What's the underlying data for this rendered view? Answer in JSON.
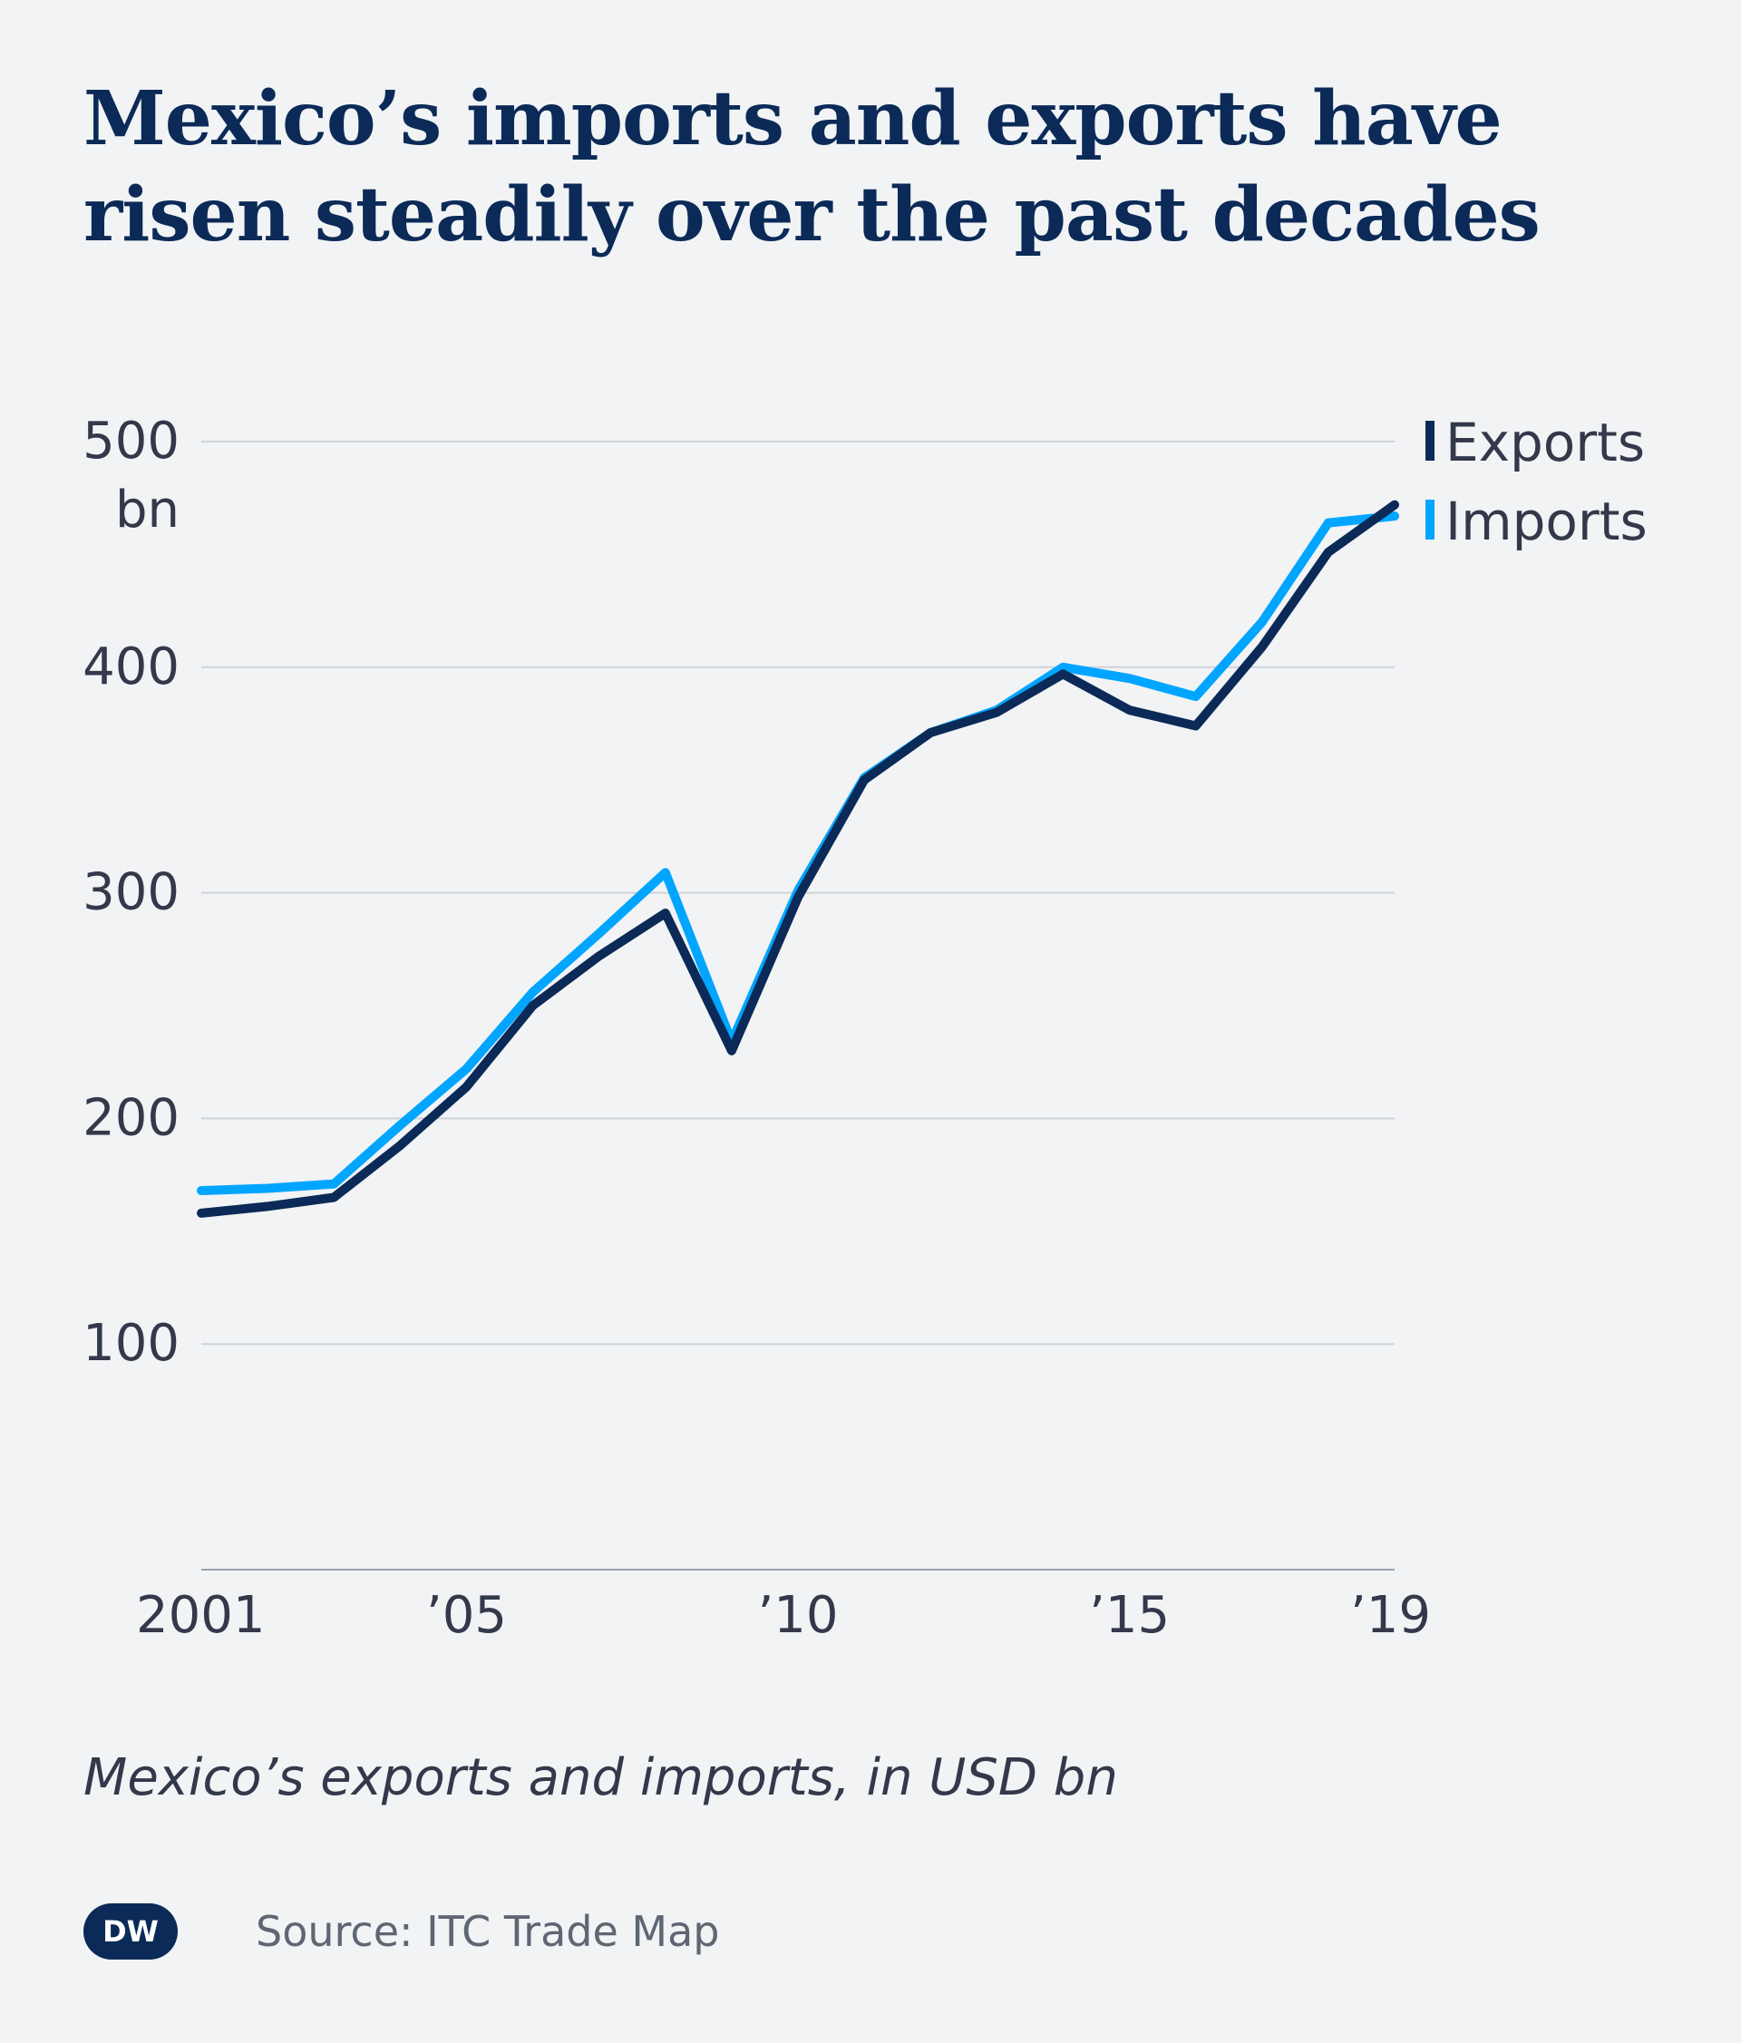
{
  "title": {
    "line1": "Mexico’s imports and exports have",
    "line2": "risen steadily over the past decades"
  },
  "subtitle": "Mexico’s exports and imports, in USD bn",
  "source": "Source: ITC Trade Map",
  "logo": {
    "text": "DW",
    "color": "#0b2a57"
  },
  "chart_data": {
    "type": "line",
    "x": [
      2001,
      2002,
      2003,
      2004,
      2005,
      2006,
      2007,
      2008,
      2009,
      2010,
      2011,
      2012,
      2013,
      2014,
      2015,
      2016,
      2017,
      2018,
      2019
    ],
    "xlim": [
      2001,
      2019
    ],
    "ylim": [
      0,
      500
    ],
    "y_ticks": [
      100,
      200,
      300,
      400,
      500
    ],
    "y_tick_labels": [
      "100",
      "200",
      "300",
      "400",
      "500"
    ],
    "y_unit_label": "bn",
    "x_ticks": [
      2001,
      2005,
      2010,
      2015,
      2019
    ],
    "x_tick_labels": [
      "2001",
      "’05",
      "’10",
      "’15",
      "’19"
    ],
    "grid": true,
    "legend_position": "top-right",
    "series": [
      {
        "name": "Exports",
        "color": "#0b2a57",
        "values": [
          158,
          161,
          165,
          188,
          214,
          250,
          272,
          291,
          230,
          298,
          350,
          371,
          380,
          397,
          381,
          374,
          409,
          451,
          472
        ]
      },
      {
        "name": "Imports",
        "color": "#00a5ff",
        "values": [
          168,
          169,
          171,
          197,
          222,
          256,
          282,
          309,
          234,
          301,
          351,
          371,
          381,
          400,
          395,
          387,
          420,
          464,
          467
        ]
      }
    ]
  }
}
